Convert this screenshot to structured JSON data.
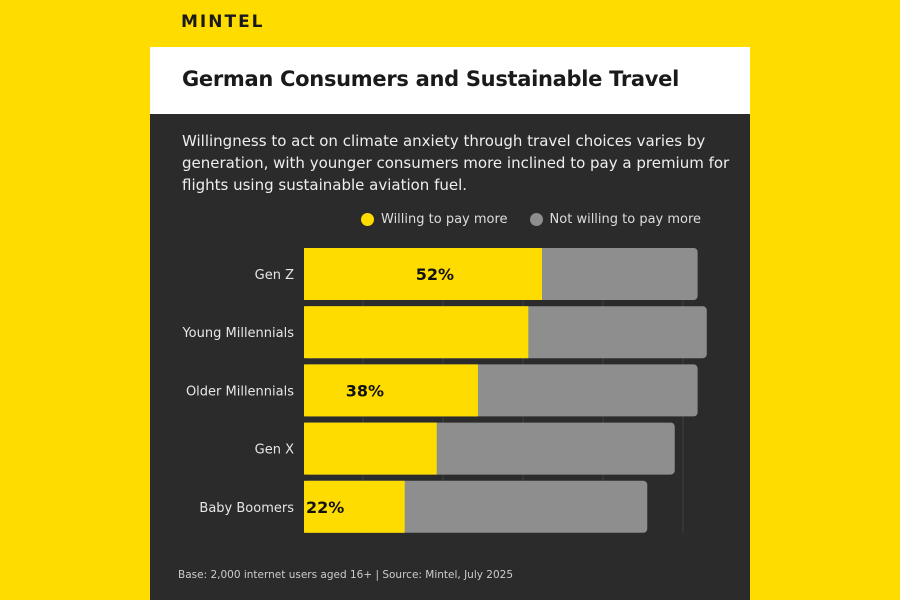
{
  "logo": "MINTEL",
  "title": "German Consumers and Sustainable Travel",
  "description": "Willingness to act on climate anxiety through travel choices varies by generation, with younger consumers more inclined to pay a premium for flights using sustainable aviation fuel.",
  "footer": "Base: 2,000 internet users aged 16+ | Source: Mintel, July 2025",
  "colors": {
    "willing": "#FFDC00",
    "not_willing": "#8e8e8e",
    "background": "#2b2b2b"
  },
  "chart_data": {
    "type": "bar",
    "orientation": "horizontal",
    "stacked": true,
    "categories": [
      "Gen Z",
      "Young Millennials",
      "Older Millennials",
      "Gen X",
      "Baby Boomers"
    ],
    "series": [
      {
        "name": "Willing to pay more",
        "values": [
          52,
          49,
          38,
          29,
          22
        ]
      },
      {
        "name": "Not willing to pay more",
        "values": [
          34,
          39,
          48,
          52,
          53
        ]
      }
    ],
    "data_labels": [
      "52%",
      "",
      "38%",
      "",
      "22%"
    ],
    "xlim": [
      0,
      90
    ],
    "legend_position": "top",
    "grid": true
  }
}
